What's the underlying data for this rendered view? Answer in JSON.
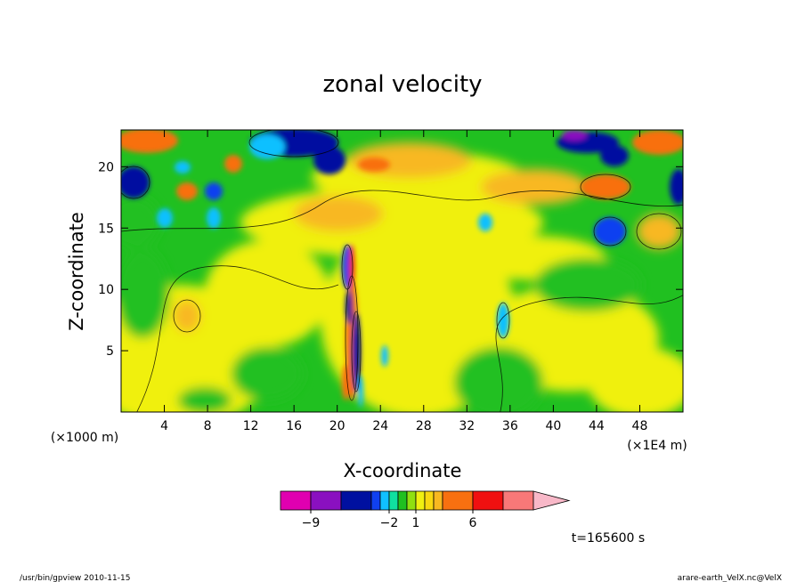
{
  "chart_data": {
    "type": "heatmap",
    "title": "zonal velocity",
    "xlabel": "X-coordinate",
    "ylabel": "Z-coordinate",
    "x_unit_left": "(×1000 m)",
    "x_unit_right": "(×1E4 m)",
    "xlim": [
      0,
      52
    ],
    "ylim": [
      0,
      23
    ],
    "x_ticks": [
      4,
      8,
      12,
      16,
      20,
      24,
      28,
      32,
      36,
      40,
      44,
      48
    ],
    "y_ticks": [
      5,
      10,
      15,
      20
    ],
    "colorbar": {
      "labels": [
        {
          "value": -9,
          "text": "−9"
        },
        {
          "value": -2,
          "text": "−2"
        },
        {
          "value": 1,
          "text": "1"
        },
        {
          "value": 6,
          "text": "6"
        }
      ],
      "levels": [
        -12,
        -9,
        -6,
        -4,
        -3,
        -2,
        -1,
        0,
        1,
        2,
        3,
        4,
        6,
        8,
        10,
        12
      ],
      "colors": [
        "#e000b0",
        "#8a10c0",
        "#0010a0",
        "#1040f0",
        "#10c0ff",
        "#10e0a0",
        "#20c020",
        "#90e010",
        "#f0f010",
        "#f8d810",
        "#f8b820",
        "#f87010",
        "#f01010",
        "#f87878",
        "#f8b8c8"
      ]
    },
    "time_label": "t=165600 s",
    "footer_left": "/usr/bin/gpview   2010-11-15",
    "footer_right": "arare-earth_VelX.nc@VelX"
  }
}
